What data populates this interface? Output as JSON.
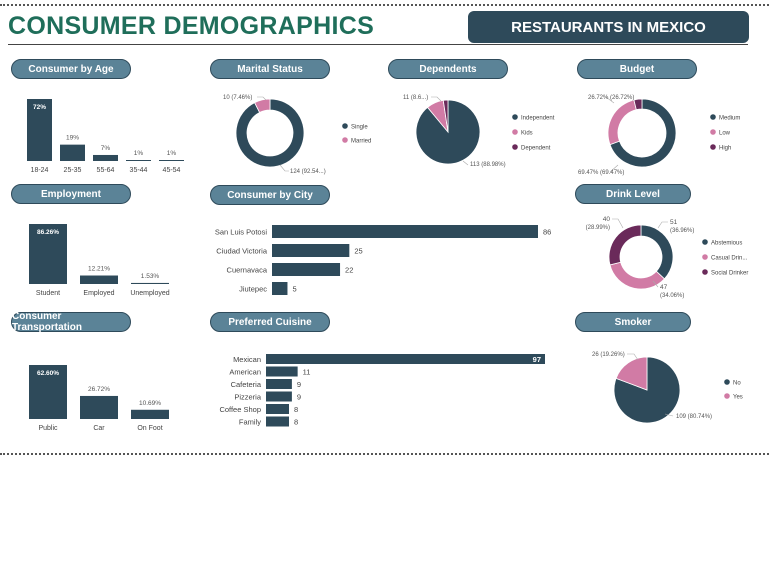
{
  "header": {
    "title": "CONSUMER DEMOGRAPHICS",
    "banner": "RESTAURANTS IN MEXICO"
  },
  "colors": {
    "dark": "#2e4a5a",
    "pink": "#d17ba5",
    "purple": "#6a2a5a",
    "pill_bg": "#5b8397",
    "title_green": "#1f6e5a"
  },
  "chart_data": [
    {
      "id": "age",
      "type": "bar",
      "title": "Consumer by Age",
      "categories": [
        "18-24",
        "25-35",
        "55-64",
        "35-44",
        "45-54"
      ],
      "values": [
        72,
        19,
        7,
        1,
        1
      ],
      "value_labels": [
        "72%",
        "19%",
        "7%",
        "1%",
        "1%"
      ]
    },
    {
      "id": "marital",
      "type": "pie",
      "donut": true,
      "title": "Marital Status",
      "slices": [
        {
          "name": "Single",
          "value": 124,
          "label": "124 (92.54...)",
          "color": "#2e4a5a"
        },
        {
          "name": "Married",
          "value": 10,
          "label": "10 (7.46%)",
          "color": "#d17ba5"
        }
      ]
    },
    {
      "id": "dependents",
      "type": "pie",
      "donut": false,
      "title": "Dependents",
      "slices": [
        {
          "name": "Independent",
          "value": 113,
          "label": "113 (88.98%)",
          "color": "#2e4a5a"
        },
        {
          "name": "Kids",
          "value": 11,
          "label": "11 (8.6...)",
          "color": "#d17ba5"
        },
        {
          "name": "Dependent",
          "value": 3,
          "label": "",
          "color": "#6a2a5a"
        }
      ]
    },
    {
      "id": "budget",
      "type": "pie",
      "donut": true,
      "title": "Budget",
      "slices": [
        {
          "name": "Medium",
          "value": 69.47,
          "label": "69.47% (69.47%)",
          "color": "#2e4a5a"
        },
        {
          "name": "Low",
          "value": 26.72,
          "label": "26.72% (26.72%)",
          "color": "#d17ba5"
        },
        {
          "name": "High",
          "value": 3.81,
          "label": "",
          "color": "#6a2a5a"
        }
      ]
    },
    {
      "id": "employment",
      "type": "bar",
      "title": "Employment",
      "categories": [
        "Student",
        "Employed",
        "Unemployed"
      ],
      "values": [
        86.26,
        12.21,
        1.53
      ],
      "value_labels": [
        "86.26%",
        "12.21%",
        "1.53%"
      ]
    },
    {
      "id": "city",
      "type": "bar",
      "orientation": "horizontal",
      "title": "Consumer by City",
      "categories": [
        "San Luis Potosi",
        "Ciudad Victoria",
        "Cuernavaca",
        "Jiutepec"
      ],
      "values": [
        86,
        25,
        22,
        5
      ]
    },
    {
      "id": "drink",
      "type": "pie",
      "donut": true,
      "title": "Drink Level",
      "slices": [
        {
          "name": "Abstemious",
          "value": 51,
          "label_value": "51",
          "label_pct": "(36.96%)",
          "color": "#2e4a5a"
        },
        {
          "name": "Casual Drin...",
          "value": 47,
          "label_value": "47",
          "label_pct": "(34.06%)",
          "color": "#d17ba5"
        },
        {
          "name": "Social Drinker",
          "value": 40,
          "label_value": "40",
          "label_pct": "(28.99%)",
          "color": "#6a2a5a"
        }
      ]
    },
    {
      "id": "transport",
      "type": "bar",
      "title": "Consumer Transportation",
      "categories": [
        "Public",
        "Car",
        "On Foot"
      ],
      "values": [
        62.6,
        26.72,
        10.69
      ],
      "value_labels": [
        "62.60%",
        "26.72%",
        "10.69%"
      ]
    },
    {
      "id": "cuisine",
      "type": "bar",
      "orientation": "horizontal",
      "title": "Preferred Cuisine",
      "categories": [
        "Mexican",
        "American",
        "Cafeteria",
        "Pizzeria",
        "Coffee Shop",
        "Family"
      ],
      "values": [
        97,
        11,
        9,
        9,
        8,
        8
      ]
    },
    {
      "id": "smoker",
      "type": "pie",
      "donut": false,
      "title": "Smoker",
      "slices": [
        {
          "name": "No",
          "value": 109,
          "label": "109 (80.74%)",
          "color": "#2e4a5a"
        },
        {
          "name": "Yes",
          "value": 26,
          "label": "26 (19.26%)",
          "color": "#d17ba5"
        }
      ]
    }
  ]
}
